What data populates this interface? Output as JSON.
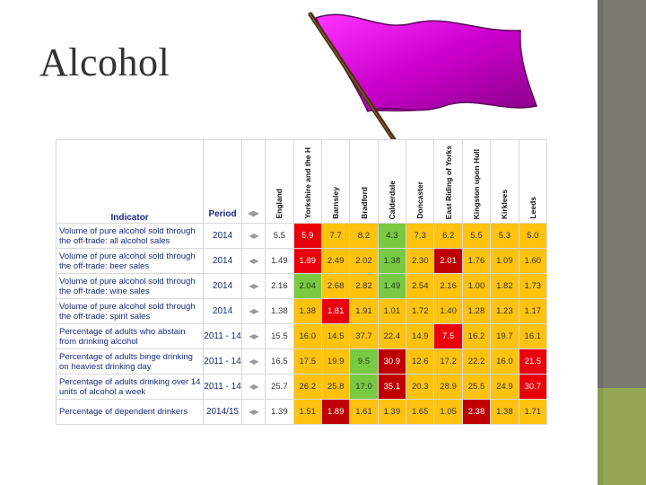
{
  "slide": {
    "title": "Alcohol"
  },
  "table": {
    "headers": {
      "indicator": "Indicator",
      "period": "Period"
    },
    "areas": [
      "England",
      "Yorkshire and the H",
      "Barnsley",
      "Bradford",
      "Calderdale",
      "Doncaster",
      "East Riding of Yorks",
      "Kingston upon Hull",
      "Kirklees",
      "Leeds"
    ],
    "rows": [
      {
        "indicator": "Volume of pure alcohol sold through the off-trade: all alcohol sales",
        "period": "2014",
        "england": "5.5",
        "values": [
          "5.9",
          "7.7",
          "8.2",
          "4.3",
          "7.3",
          "6.2",
          "5.5",
          "5.3",
          "5.0"
        ],
        "colors": [
          "r",
          "y",
          "y",
          "g",
          "y",
          "y",
          "y",
          "y",
          "y"
        ]
      },
      {
        "indicator": "Volume of pure alcohol sold through the off-trade: beer sales",
        "period": "2014",
        "england": "1.49",
        "values": [
          "1.89",
          "2.49",
          "2.02",
          "1.38",
          "2.30",
          "2.01",
          "1.76",
          "1.09",
          "1.60"
        ],
        "colors": [
          "r",
          "y",
          "y",
          "g",
          "y",
          "dr",
          "y",
          "y",
          "y"
        ]
      },
      {
        "indicator": "Volume of pure alcohol sold through the off-trade: wine sales",
        "period": "2014",
        "england": "2.16",
        "values": [
          "2.04",
          "2.68",
          "2.82",
          "1.49",
          "2.54",
          "2.16",
          "1.00",
          "1.82",
          "1.73"
        ],
        "colors": [
          "g",
          "y",
          "y",
          "g",
          "y",
          "y",
          "y",
          "y",
          "y"
        ]
      },
      {
        "indicator": "Volume of pure alcohol sold through the off-trade: spirit sales",
        "period": "2014",
        "england": "1.38",
        "values": [
          "1.38",
          "1.81",
          "1.91",
          "1.01",
          "1.72",
          "1.40",
          "1.28",
          "1.23",
          "1.17"
        ],
        "colors": [
          "y",
          "r",
          "y",
          "y",
          "y",
          "y",
          "y",
          "y",
          "y"
        ]
      },
      {
        "indicator": "Percentage of adults who abstain from drinking alcohol",
        "period": "2011 - 14",
        "england": "15.5",
        "values": [
          "16.0",
          "14.5",
          "37.7",
          "22.4",
          "14.9",
          "7.5",
          "16.2",
          "19.7",
          "16.1"
        ],
        "colors": [
          "y",
          "y",
          "y",
          "y",
          "y",
          "r",
          "y",
          "y",
          "y"
        ]
      },
      {
        "indicator": "Percentage of adults binge drinking on heaviest drinking day",
        "period": "2011 - 14",
        "england": "16.5",
        "values": [
          "17.5",
          "19.9",
          "9.5",
          "30.9",
          "12.6",
          "17.2",
          "22.2",
          "16.0",
          "21.5"
        ],
        "colors": [
          "y",
          "y",
          "g",
          "dr",
          "y",
          "y",
          "y",
          "y",
          "r"
        ]
      },
      {
        "indicator": "Percentage of adults drinking over 14 units of alcohol a week",
        "period": "2011 - 14",
        "england": "25.7",
        "values": [
          "26.2",
          "25.8",
          "17.0",
          "35.1",
          "20.3",
          "28.9",
          "25.5",
          "24.9",
          "30.7"
        ],
        "colors": [
          "y",
          "y",
          "g",
          "dr",
          "y",
          "y",
          "y",
          "y",
          "r"
        ]
      },
      {
        "indicator": "Percentage of dependent drinkers",
        "period": "2014/15",
        "england": "1.39",
        "values": [
          "1.51",
          "1.89",
          "1.61",
          "1.39",
          "1.65",
          "1.05",
          "2.38",
          "1.38",
          "1.71"
        ],
        "colors": [
          "y",
          "dr",
          "y",
          "y",
          "y",
          "y",
          "dr",
          "y",
          "y"
        ]
      }
    ]
  },
  "colors": {
    "green": "#7ac943",
    "amber": "#ffc20e",
    "red": "#e8000b",
    "dark_red": "#c00000",
    "flag": "#cc00cc",
    "pole": "#5a3a1a"
  },
  "icons": [
    "flag-icon",
    "arrow-left-icon",
    "arrow-right-icon"
  ]
}
